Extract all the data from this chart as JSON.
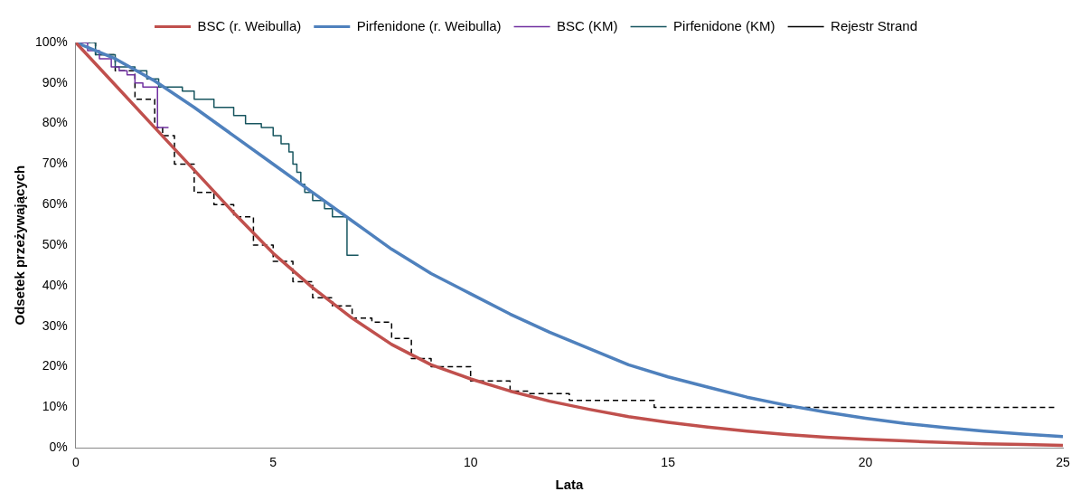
{
  "chart_data": {
    "type": "line",
    "xlabel": "Lata",
    "ylabel": "Odsetek przeżywających",
    "xlim": [
      0,
      25
    ],
    "xticks": [
      0,
      5,
      10,
      15,
      20,
      25
    ],
    "ylim": [
      0,
      100
    ],
    "yticks": [
      {
        "value": 0,
        "label": "0%"
      },
      {
        "value": 10,
        "label": "10%"
      },
      {
        "value": 20,
        "label": "20%"
      },
      {
        "value": 30,
        "label": "30%"
      },
      {
        "value": 40,
        "label": "40%"
      },
      {
        "value": 50,
        "label": "50%"
      },
      {
        "value": 60,
        "label": "60%"
      },
      {
        "value": 70,
        "label": "70%"
      },
      {
        "value": 80,
        "label": "80%"
      },
      {
        "value": 90,
        "label": "90%"
      },
      {
        "value": 100,
        "label": "100%"
      }
    ],
    "grid": false,
    "legend": "top",
    "marker": "none",
    "series": [
      {
        "name": "BSC (r. Weibulla)",
        "type": "line",
        "color": "#c0504d",
        "line_style": "solid",
        "x": [
          0,
          1,
          2,
          3,
          4,
          5,
          6,
          7,
          8,
          9,
          10,
          11,
          12,
          13,
          14,
          15,
          16,
          17,
          18,
          19,
          20,
          21,
          22,
          23,
          24,
          25
        ],
        "values": [
          100,
          89.5,
          79,
          68.5,
          58,
          48,
          39.5,
          32,
          25.5,
          20.5,
          17,
          14,
          11.5,
          9.5,
          7.7,
          6.3,
          5.1,
          4.1,
          3.3,
          2.6,
          2.1,
          1.7,
          1.3,
          1,
          0.8,
          0.6
        ]
      },
      {
        "name": "Pirfenidone (r. Weibulla)",
        "type": "line",
        "color": "#4f81bd",
        "line_style": "solid",
        "x": [
          0,
          1,
          2,
          3,
          4,
          5,
          6,
          7,
          8,
          9,
          10,
          11,
          12,
          13,
          14,
          15,
          16,
          17,
          18,
          19,
          20,
          21,
          22,
          23,
          24,
          25
        ],
        "values": [
          100,
          96,
          90.5,
          84,
          77,
          70,
          63,
          56,
          49,
          43,
          38,
          33,
          28.5,
          24.5,
          20.5,
          17.5,
          15,
          12.5,
          10.5,
          8.8,
          7.3,
          6,
          5,
          4.1,
          3.4,
          2.8
        ]
      },
      {
        "name": "BSC (KM)",
        "type": "step",
        "color": "#7030a0",
        "line_style": "solid",
        "x": [
          0,
          0.3,
          0.6,
          0.9,
          1.1,
          1.3,
          1.5,
          1.7,
          2.07,
          2.35
        ],
        "values": [
          100,
          98,
          96,
          94,
          93,
          92,
          90,
          89,
          79,
          79
        ]
      },
      {
        "name": "Pirfenidone (KM)",
        "type": "step",
        "color": "#17555f",
        "line_style": "solid",
        "x": [
          0,
          0.5,
          1,
          1.5,
          1.8,
          2.1,
          2.7,
          3,
          3.5,
          4,
          4.3,
          4.7,
          5,
          5.2,
          5.4,
          5.5,
          5.6,
          5.7,
          5.8,
          6,
          6.3,
          6.5,
          6.87,
          7.16
        ],
        "values": [
          100,
          97,
          94,
          93,
          91,
          89,
          88,
          86,
          84,
          82,
          80,
          79,
          77,
          75,
          73,
          70,
          68,
          65,
          63,
          61,
          59,
          57,
          47.5,
          47.5
        ]
      },
      {
        "name": "Rejestr Strand",
        "type": "step",
        "color": "#000000",
        "line_style": "dashed",
        "x": [
          0,
          0.5,
          1,
          1.5,
          2,
          2.2,
          2.5,
          3,
          3.5,
          4,
          4.5,
          5,
          5.5,
          6,
          6.5,
          7,
          7.5,
          8,
          8.5,
          9,
          10,
          11,
          11.5,
          12.5,
          14.65,
          24.8
        ],
        "values": [
          100,
          97,
          93,
          86,
          79,
          77,
          70,
          63,
          60,
          57,
          50,
          46,
          41,
          37,
          35,
          32,
          31,
          27,
          22,
          20,
          16.5,
          14,
          13.4,
          11.7,
          10,
          10
        ]
      }
    ]
  }
}
